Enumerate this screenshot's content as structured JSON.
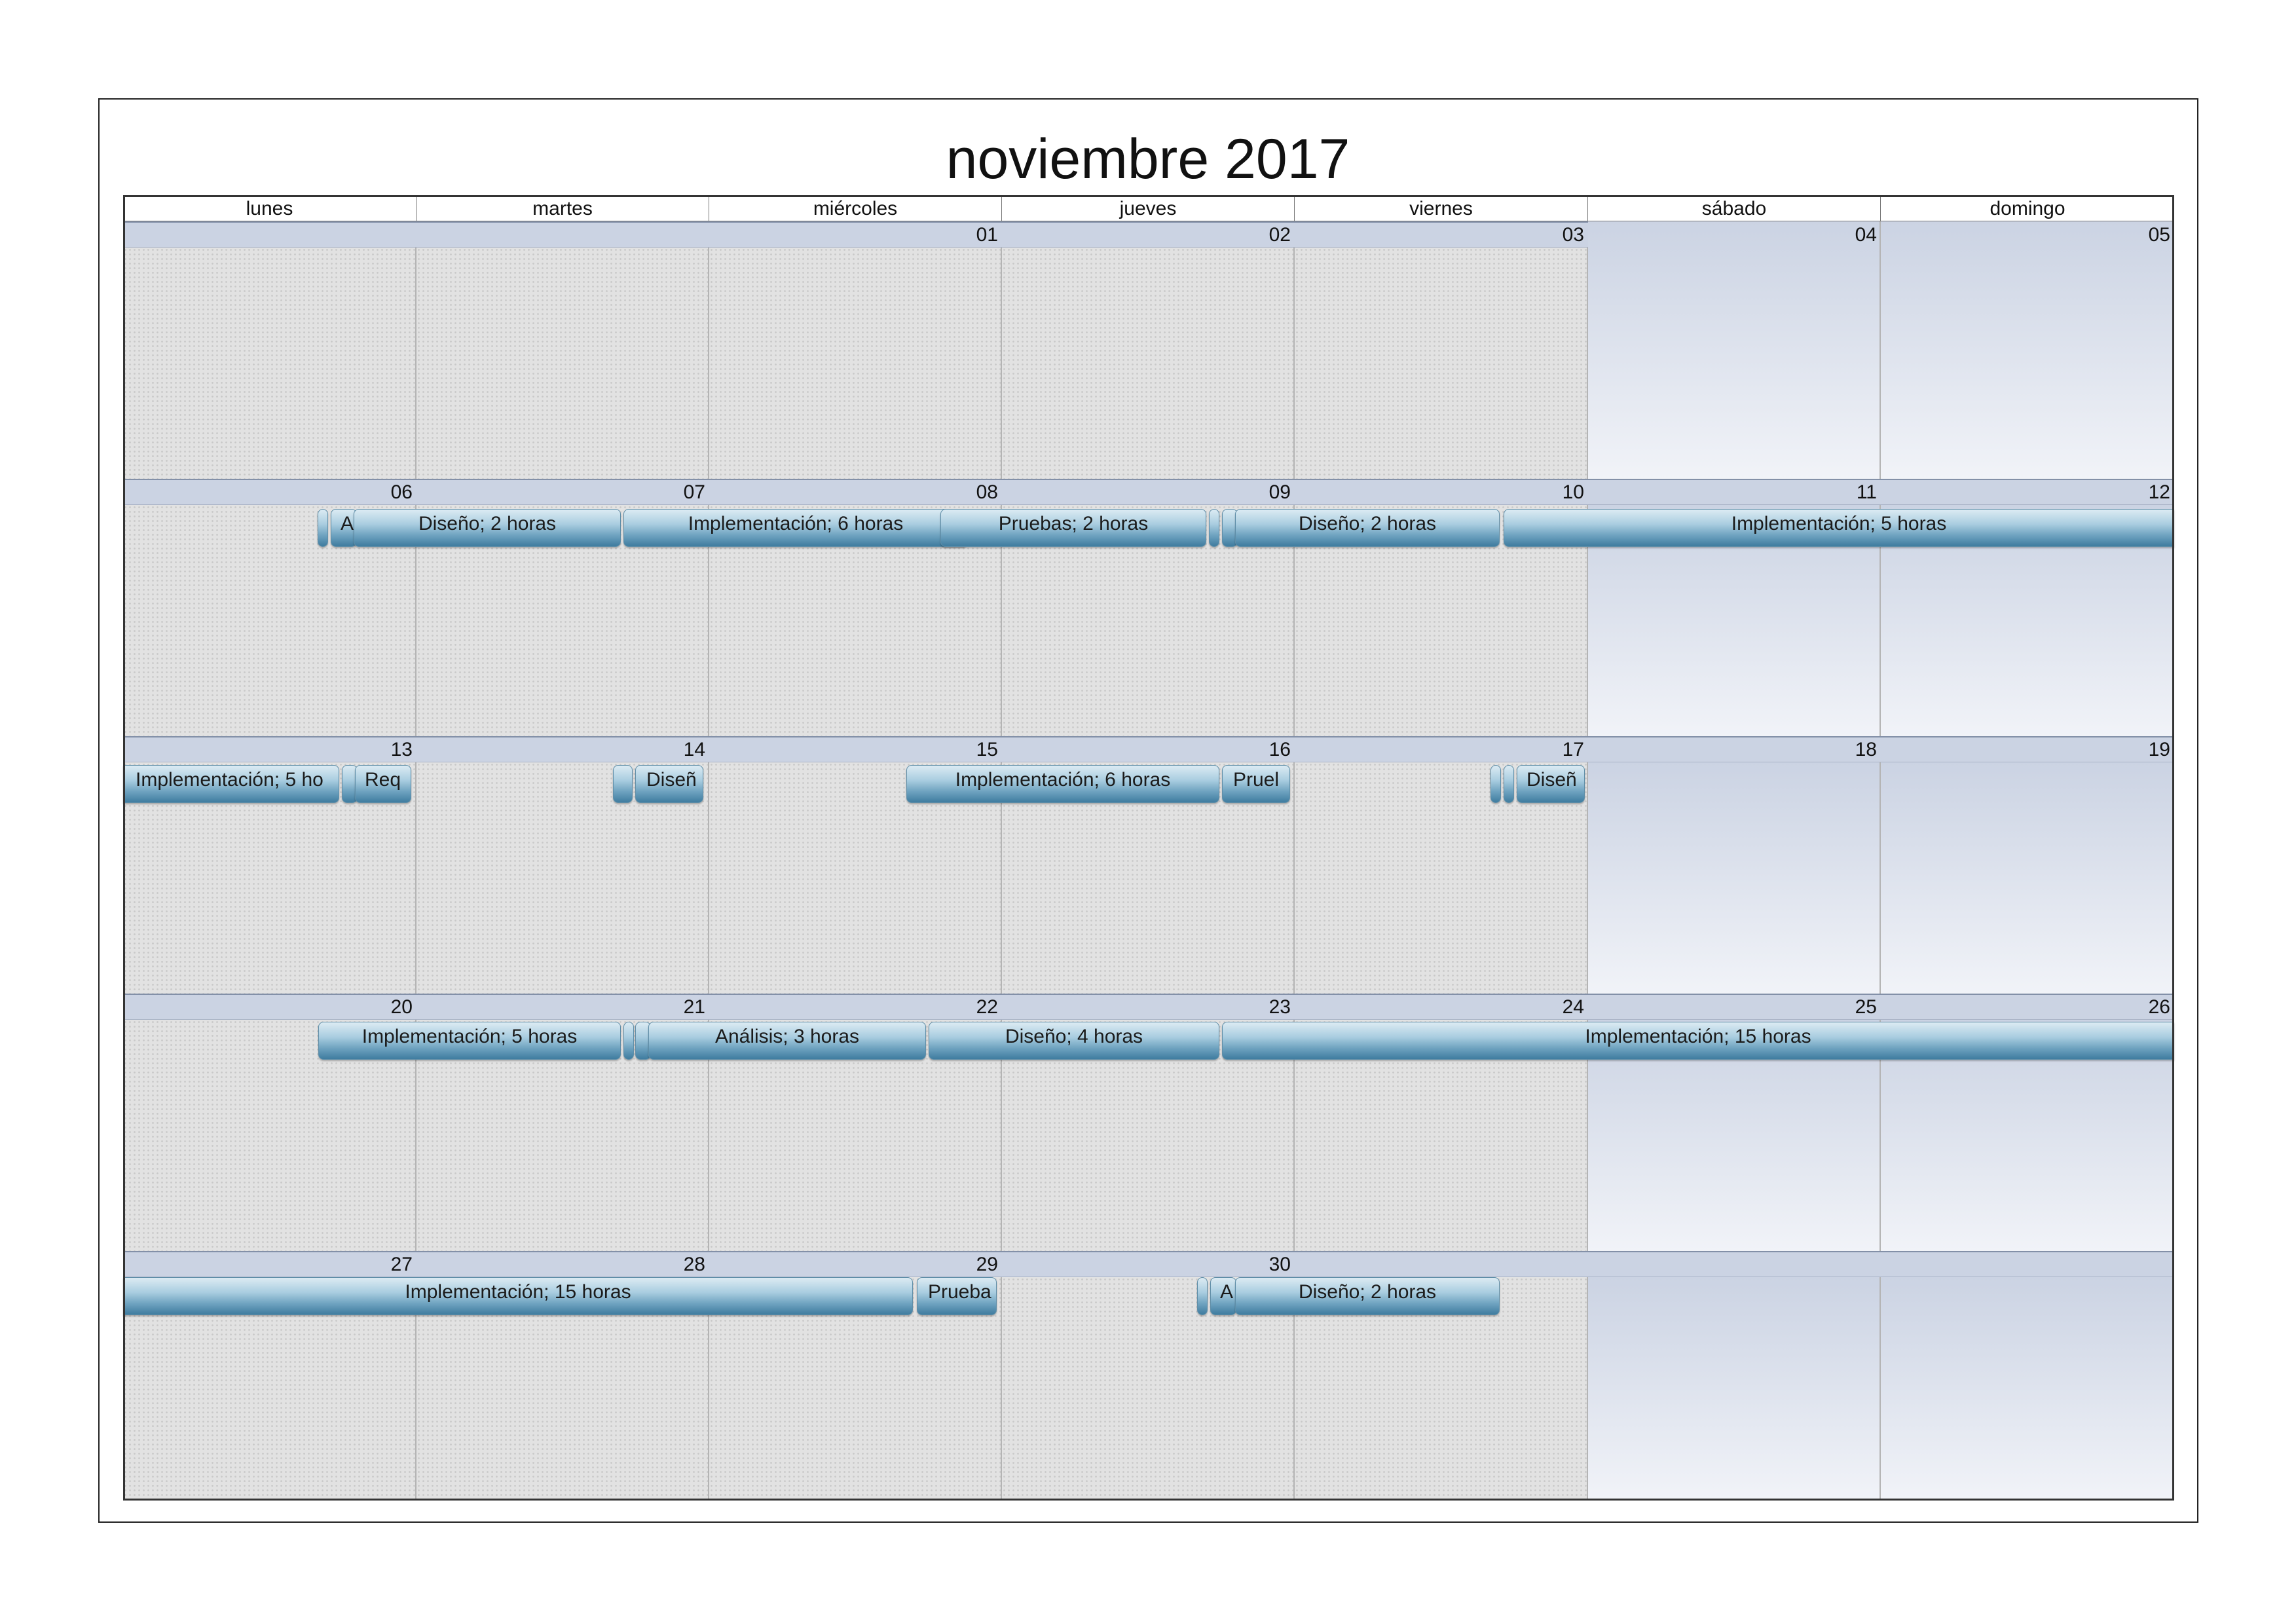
{
  "title": "noviembre 2017",
  "weekdays": [
    "lunes",
    "martes",
    "miércoles",
    "jueves",
    "viernes",
    "sábado",
    "domingo"
  ],
  "weeks": [
    {
      "days": [
        "",
        "",
        "01",
        "02",
        "03",
        "04",
        "05"
      ]
    },
    {
      "days": [
        "06",
        "07",
        "08",
        "09",
        "10",
        "11",
        "12"
      ]
    },
    {
      "days": [
        "13",
        "14",
        "15",
        "16",
        "17",
        "18",
        "19"
      ]
    },
    {
      "days": [
        "20",
        "21",
        "22",
        "23",
        "24",
        "25",
        "26"
      ]
    },
    {
      "days": [
        "27",
        "28",
        "29",
        "30",
        "",
        "",
        ""
      ]
    }
  ],
  "events": {
    "w1": [
      "",
      "A",
      "Diseño; 2 horas",
      "Implementación; 6 horas",
      "Pruebas; 2 horas",
      "",
      "",
      "Diseño; 2 horas",
      "Implementación; 5 horas"
    ],
    "w2": [
      "Implementación; 5 ho",
      "",
      "Req",
      "",
      "Diseñ",
      "Implementación; 6 horas",
      "Pruel",
      "",
      "",
      "Diseñ"
    ],
    "w3": [
      "Implementación; 5 horas",
      "",
      "",
      "Análisis; 3 horas",
      "Diseño; 4 horas",
      "Implementación; 15 horas"
    ],
    "w4": [
      "Implementación; 15 horas",
      "Prueba",
      "",
      "A",
      "Diseño; 2 horas"
    ]
  }
}
